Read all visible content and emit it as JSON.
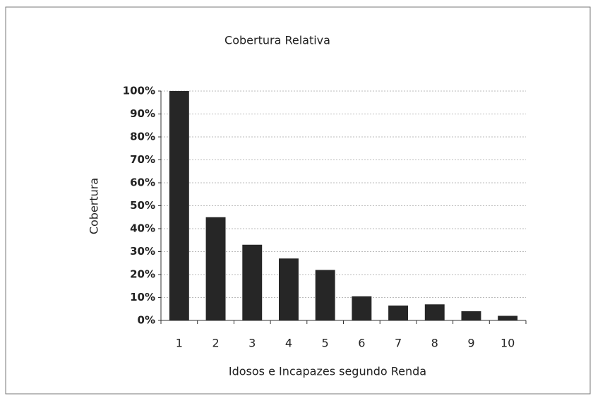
{
  "chart_data": {
    "type": "bar",
    "title": "Cobertura Relativa",
    "xlabel": "Idosos e Incapazes segundo Renda",
    "ylabel": "Cobertura",
    "categories": [
      "1",
      "2",
      "3",
      "4",
      "5",
      "6",
      "7",
      "8",
      "9",
      "10"
    ],
    "values": [
      100,
      45,
      33,
      27,
      22,
      10.5,
      6.5,
      7,
      4,
      2
    ],
    "color": "#262626",
    "ylim": [
      0,
      100
    ],
    "yticks": [
      {
        "value": 0,
        "label": "0%"
      },
      {
        "value": 10,
        "label": "10%"
      },
      {
        "value": 20,
        "label": "20%"
      },
      {
        "value": 30,
        "label": "30%"
      },
      {
        "value": 40,
        "label": "40%"
      },
      {
        "value": 50,
        "label": "50%"
      },
      {
        "value": 60,
        "label": "60%"
      },
      {
        "value": 70,
        "label": "70%"
      },
      {
        "value": 80,
        "label": "80%"
      },
      {
        "value": 90,
        "label": "90%"
      },
      {
        "value": 100,
        "label": "100%"
      }
    ],
    "grid": true
  }
}
